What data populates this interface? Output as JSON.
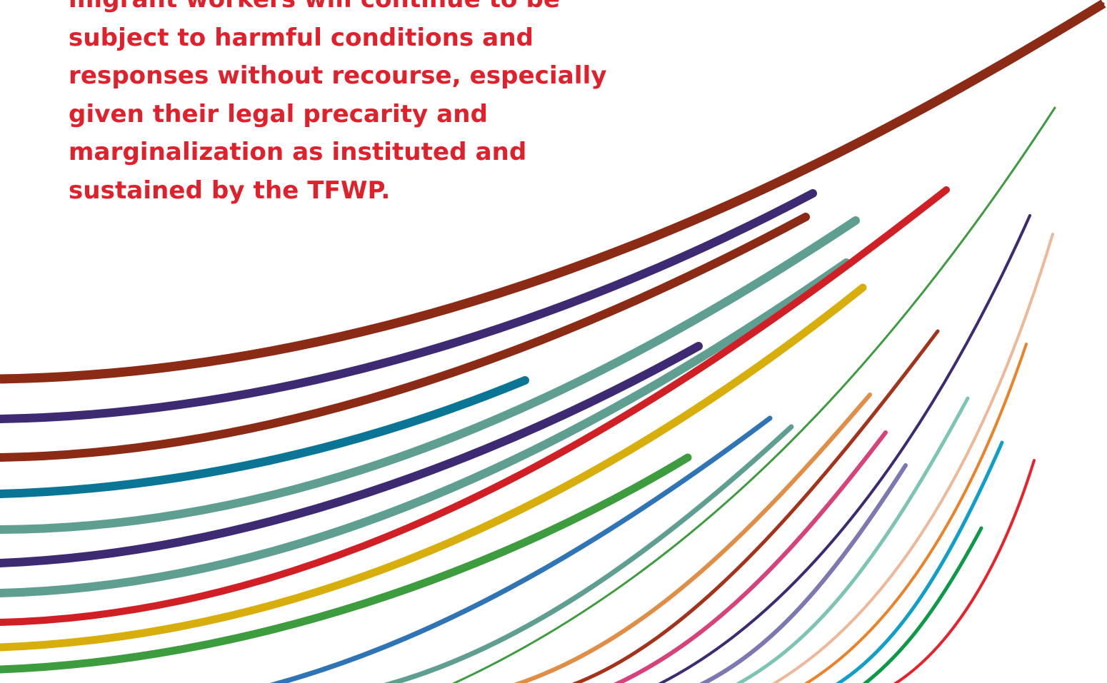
{
  "quote": {
    "lines": [
      "migrant workers will continue to be",
      "subject to harmful conditions and",
      "responses without recourse, especially",
      "given their legal precarity and",
      "marginalization as instituted and",
      "sustained by the TFWP."
    ],
    "color": "#e0202b"
  },
  "decoration": {
    "stroke_colors": [
      "#8b2a15",
      "#3d2a72",
      "#0b7595",
      "#5f9f92",
      "#d11f26",
      "#d7ae0c",
      "#3c9c3e",
      "#2f75b5",
      "#e08d45",
      "#d8427a",
      "#7b78b2",
      "#7cc4b4",
      "#eeb898",
      "#ec8128",
      "#0f9fca",
      "#0c9a49",
      "#e9212a"
    ]
  }
}
